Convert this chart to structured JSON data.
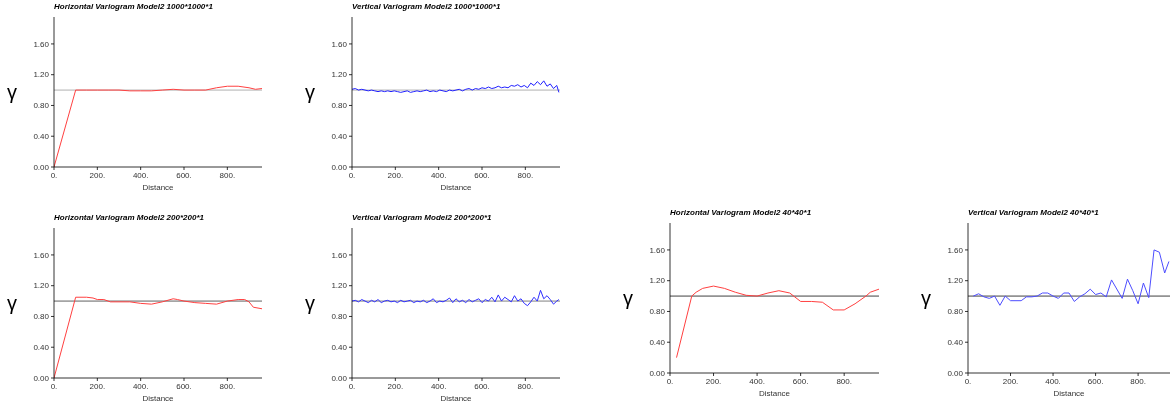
{
  "chart_data": [
    {
      "type": "line",
      "title": "Horizontal Variogram Model2 1000*1000*1",
      "xlabel": "Distance",
      "ylabel": "γ",
      "xlim": [
        0,
        960
      ],
      "ylim": [
        0,
        1.95
      ],
      "xticks": [
        {
          "value": 0,
          "label": "0."
        },
        {
          "value": 200,
          "label": "200."
        },
        {
          "value": 400,
          "label": "400."
        },
        {
          "value": 600,
          "label": "600."
        },
        {
          "value": 800,
          "label": "800."
        }
      ],
      "yticks": [
        {
          "value": 0,
          "label": "0.00"
        },
        {
          "value": 0.4,
          "label": "0.40"
        },
        {
          "value": 0.8,
          "label": "0.80"
        },
        {
          "value": 1.2,
          "label": "1.20"
        },
        {
          "value": 1.6,
          "label": "1.60"
        }
      ],
      "ref_lines": [
        {
          "axis": "y",
          "value": 1.0,
          "color": "#b0b0b0"
        }
      ],
      "series": [
        {
          "color": "#ff4040",
          "x": [
            0,
            100,
            150,
            200,
            250,
            300,
            350,
            400,
            450,
            500,
            550,
            600,
            650,
            700,
            750,
            800,
            850,
            900,
            930,
            960
          ],
          "values": [
            0,
            1.0,
            1.0,
            1.0,
            1.0,
            1.0,
            0.99,
            0.99,
            0.99,
            1.0,
            1.01,
            1.0,
            1.0,
            1.0,
            1.03,
            1.05,
            1.05,
            1.03,
            1.01,
            1.02
          ]
        }
      ]
    },
    {
      "type": "line",
      "title": "Vertical Variogram Model2 1000*1000*1",
      "xlabel": "Distance",
      "ylabel": "γ",
      "xlim": [
        0,
        960
      ],
      "ylim": [
        0,
        1.95
      ],
      "xticks": [
        {
          "value": 0,
          "label": "0."
        },
        {
          "value": 200,
          "label": "200."
        },
        {
          "value": 400,
          "label": "400."
        },
        {
          "value": 600,
          "label": "600."
        },
        {
          "value": 800,
          "label": "800."
        }
      ],
      "yticks": [
        {
          "value": 0,
          "label": "0.00"
        },
        {
          "value": 0.4,
          "label": "0.40"
        },
        {
          "value": 0.8,
          "label": "0.80"
        },
        {
          "value": 1.2,
          "label": "1.20"
        },
        {
          "value": 1.6,
          "label": "1.60"
        }
      ],
      "ref_lines": [
        {
          "axis": "y",
          "value": 1.0,
          "color": "#b0b0b0"
        }
      ],
      "series": [
        {
          "color": "#2020ff",
          "x": [
            0,
            15,
            30,
            45,
            60,
            75,
            90,
            105,
            120,
            135,
            150,
            165,
            180,
            195,
            210,
            225,
            240,
            255,
            270,
            285,
            300,
            315,
            330,
            345,
            360,
            375,
            390,
            405,
            420,
            435,
            450,
            465,
            480,
            495,
            510,
            525,
            540,
            555,
            570,
            585,
            600,
            615,
            630,
            645,
            660,
            675,
            690,
            705,
            720,
            735,
            750,
            765,
            780,
            795,
            810,
            825,
            840,
            855,
            870,
            885,
            900,
            915,
            930,
            945,
            955
          ],
          "values": [
            1.01,
            1.02,
            1.0,
            1.01,
            1.0,
            0.99,
            1.0,
            0.99,
            0.98,
            0.99,
            0.98,
            0.99,
            0.98,
            0.99,
            0.98,
            0.97,
            0.98,
            0.99,
            0.97,
            0.98,
            0.99,
            0.98,
            0.99,
            1.0,
            0.98,
            0.99,
            0.98,
            1.0,
            0.99,
            0.98,
            1.0,
            0.99,
            1.0,
            1.01,
            0.99,
            1.01,
            1.02,
            1.0,
            1.02,
            1.01,
            1.03,
            1.02,
            1.04,
            1.02,
            1.03,
            1.05,
            1.03,
            1.04,
            1.03,
            1.06,
            1.05,
            1.07,
            1.04,
            1.06,
            1.03,
            1.09,
            1.06,
            1.11,
            1.07,
            1.12,
            1.05,
            1.08,
            1.02,
            1.06,
            0.97
          ]
        }
      ]
    },
    {
      "type": "line",
      "title": "Horizontal Variogram Model2 200*200*1",
      "xlabel": "Distance",
      "ylabel": "γ",
      "xlim": [
        0,
        960
      ],
      "ylim": [
        0,
        1.95
      ],
      "xticks": [
        {
          "value": 0,
          "label": "0."
        },
        {
          "value": 200,
          "label": "200."
        },
        {
          "value": 400,
          "label": "400."
        },
        {
          "value": 600,
          "label": "600."
        },
        {
          "value": 800,
          "label": "800."
        }
      ],
      "yticks": [
        {
          "value": 0,
          "label": "0.00"
        },
        {
          "value": 0.4,
          "label": "0.40"
        },
        {
          "value": 0.8,
          "label": "0.80"
        },
        {
          "value": 1.2,
          "label": "1.20"
        },
        {
          "value": 1.6,
          "label": "1.60"
        }
      ],
      "ref_lines": [
        {
          "axis": "y",
          "value": 1.0,
          "color": "#606060"
        }
      ],
      "series": [
        {
          "color": "#ff4040",
          "x": [
            0,
            100,
            150,
            180,
            200,
            230,
            260,
            300,
            350,
            400,
            450,
            500,
            550,
            570,
            600,
            650,
            700,
            750,
            800,
            850,
            880,
            900,
            920,
            960
          ],
          "values": [
            0,
            1.05,
            1.05,
            1.04,
            1.02,
            1.02,
            0.99,
            0.99,
            0.99,
            0.97,
            0.96,
            0.99,
            1.03,
            1.02,
            1.0,
            0.98,
            0.97,
            0.96,
            1.0,
            1.02,
            1.02,
            0.99,
            0.92,
            0.9
          ]
        }
      ]
    },
    {
      "type": "line",
      "title": "Vertical Variogram Model2 200*200*1",
      "xlabel": "Distance",
      "ylabel": "γ",
      "xlim": [
        0,
        960
      ],
      "ylim": [
        0,
        1.95
      ],
      "xticks": [
        {
          "value": 0,
          "label": "0."
        },
        {
          "value": 200,
          "label": "200."
        },
        {
          "value": 400,
          "label": "400."
        },
        {
          "value": 600,
          "label": "600."
        },
        {
          "value": 800,
          "label": "800."
        }
      ],
      "yticks": [
        {
          "value": 0,
          "label": "0.00"
        },
        {
          "value": 0.4,
          "label": "0.40"
        },
        {
          "value": 0.8,
          "label": "0.80"
        },
        {
          "value": 1.2,
          "label": "1.20"
        },
        {
          "value": 1.6,
          "label": "1.60"
        }
      ],
      "ref_lines": [
        {
          "axis": "y",
          "value": 1.0,
          "color": "#808080"
        }
      ],
      "series": [
        {
          "color": "#3030ff",
          "x": [
            0,
            15,
            30,
            45,
            60,
            75,
            90,
            105,
            120,
            135,
            150,
            165,
            180,
            195,
            210,
            225,
            240,
            255,
            270,
            285,
            300,
            315,
            330,
            345,
            360,
            375,
            390,
            405,
            420,
            435,
            450,
            465,
            480,
            495,
            510,
            525,
            540,
            555,
            570,
            585,
            600,
            615,
            630,
            645,
            660,
            675,
            690,
            705,
            720,
            735,
            750,
            765,
            780,
            795,
            810,
            825,
            840,
            855,
            870,
            885,
            900,
            915,
            930,
            945,
            955
          ],
          "values": [
            1.0,
            1.01,
            0.99,
            1.02,
            1.0,
            0.98,
            1.01,
            0.99,
            1.02,
            0.98,
            1.0,
            1.01,
            0.99,
            1.0,
            0.98,
            1.01,
            0.99,
            1.0,
            1.01,
            0.98,
            1.0,
            0.99,
            1.01,
            0.98,
            1.0,
            1.03,
            0.98,
            1.0,
            0.99,
            1.01,
            1.04,
            0.98,
            1.03,
            0.99,
            1.01,
            0.98,
            1.02,
            0.99,
            1.01,
            1.03,
            0.98,
            1.02,
            1.0,
            1.05,
            0.99,
            1.08,
            1.0,
            1.05,
            1.02,
            0.99,
            1.07,
            1.0,
            1.03,
            0.97,
            0.94,
            0.99,
            1.05,
            1.0,
            1.14,
            1.03,
            1.07,
            1.02,
            0.96,
            1.0,
            1.02
          ]
        }
      ]
    },
    {
      "type": "line",
      "title": "Horizontal Variogram Model2 40*40*1",
      "xlabel": "Distance",
      "ylabel": "γ",
      "xlim": [
        0,
        960
      ],
      "ylim": [
        0,
        1.95
      ],
      "xticks": [
        {
          "value": 0,
          "label": "0."
        },
        {
          "value": 200,
          "label": "200."
        },
        {
          "value": 400,
          "label": "400."
        },
        {
          "value": 600,
          "label": "600."
        },
        {
          "value": 800,
          "label": "800."
        }
      ],
      "yticks": [
        {
          "value": 0,
          "label": "0.00"
        },
        {
          "value": 0.4,
          "label": "0.40"
        },
        {
          "value": 0.8,
          "label": "0.80"
        },
        {
          "value": 1.2,
          "label": "1.20"
        },
        {
          "value": 1.6,
          "label": "1.60"
        }
      ],
      "ref_lines": [
        {
          "axis": "y",
          "value": 1.0,
          "color": "#404040"
        }
      ],
      "series": [
        {
          "color": "#ff4040",
          "x": [
            30,
            100,
            120,
            150,
            200,
            250,
            300,
            350,
            400,
            450,
            500,
            550,
            600,
            650,
            700,
            750,
            800,
            850,
            900,
            920,
            960
          ],
          "values": [
            0.2,
            1.0,
            1.05,
            1.1,
            1.13,
            1.1,
            1.05,
            1.01,
            1.0,
            1.04,
            1.07,
            1.04,
            0.93,
            0.93,
            0.92,
            0.82,
            0.82,
            0.9,
            1.0,
            1.05,
            1.09
          ]
        }
      ]
    },
    {
      "type": "line",
      "title": "Vertical Variogram Model2 40*40*1",
      "xlabel": "Distance",
      "ylabel": "γ",
      "xlim": [
        0,
        950
      ],
      "ylim": [
        0,
        1.95
      ],
      "xticks": [
        {
          "value": 0,
          "label": "0."
        },
        {
          "value": 200,
          "label": "200."
        },
        {
          "value": 400,
          "label": "400."
        },
        {
          "value": 600,
          "label": "600."
        },
        {
          "value": 800,
          "label": "800."
        }
      ],
      "yticks": [
        {
          "value": 0,
          "label": "0.00"
        },
        {
          "value": 0.4,
          "label": "0.40"
        },
        {
          "value": 0.8,
          "label": "0.80"
        },
        {
          "value": 1.2,
          "label": "1.20"
        },
        {
          "value": 1.6,
          "label": "1.60"
        }
      ],
      "ref_lines": [
        {
          "axis": "y",
          "value": 1.0,
          "color": "#404040"
        }
      ],
      "series": [
        {
          "color": "#4d4dff",
          "x": [
            25,
            50,
            75,
            100,
            125,
            150,
            175,
            200,
            250,
            275,
            300,
            325,
            350,
            375,
            400,
            425,
            450,
            475,
            500,
            525,
            550,
            575,
            600,
            625,
            650,
            675,
            725,
            750,
            775,
            800,
            825,
            850,
            875,
            900,
            925,
            945
          ],
          "values": [
            1.0,
            1.03,
            0.99,
            0.97,
            1.0,
            0.88,
            1.0,
            0.94,
            0.94,
            0.99,
            0.99,
            1.0,
            1.04,
            1.04,
            1.0,
            0.97,
            1.04,
            1.04,
            0.93,
            0.99,
            1.03,
            1.09,
            1.02,
            1.04,
            0.99,
            1.21,
            0.97,
            1.22,
            1.07,
            0.9,
            1.17,
            0.98,
            1.6,
            1.57,
            1.3,
            1.45
          ]
        }
      ]
    }
  ]
}
